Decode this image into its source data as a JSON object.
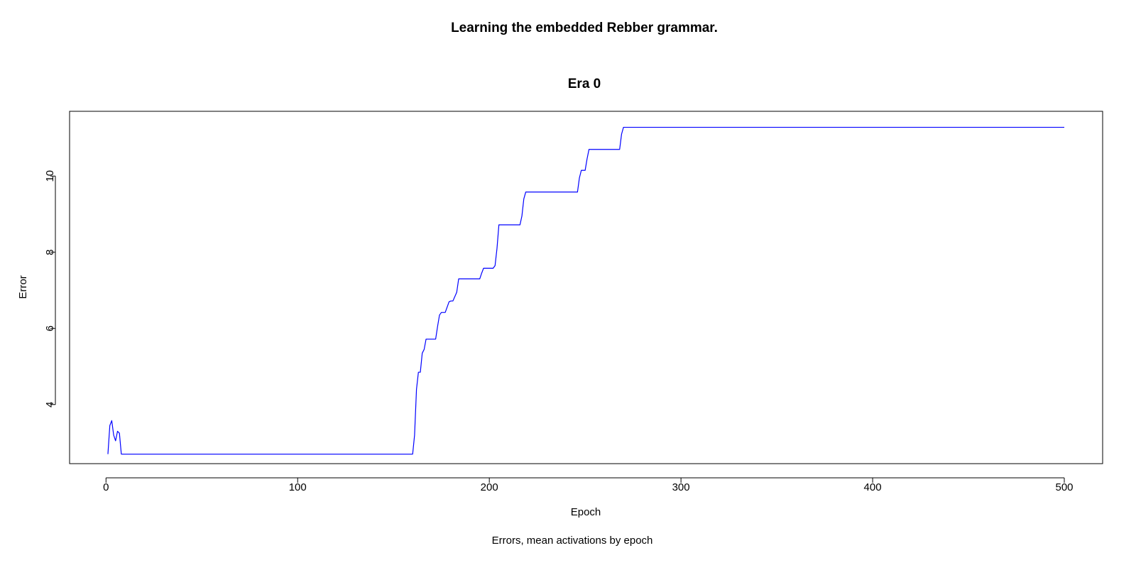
{
  "chart_data": {
    "type": "line",
    "title": "Learning the embedded Rebber grammar.",
    "subtitle": "Era 0",
    "xlabel": "Epoch",
    "ylabel": "Error",
    "caption": "Errors, mean activations by epoch",
    "xlim": [
      -19,
      520
    ],
    "ylim": [
      2.45,
      11.7
    ],
    "x_ticks": [
      0,
      100,
      200,
      300,
      400,
      500
    ],
    "x_tick_labels": [
      "0",
      "100",
      "200",
      "300",
      "400",
      "500"
    ],
    "y_ticks": [
      4,
      6,
      8,
      10
    ],
    "y_tick_labels": [
      "4",
      "6",
      "8",
      "10"
    ],
    "grid": false,
    "legend": "none",
    "series": [
      {
        "color": "#0000ff",
        "x": [
          1,
          2,
          3,
          4,
          5,
          6,
          7,
          8,
          160,
          161,
          162,
          163,
          164,
          165,
          166,
          167,
          168,
          169,
          172,
          173,
          174,
          175,
          176,
          177,
          179,
          180,
          181,
          183,
          184,
          195,
          196,
          197,
          202,
          203,
          204,
          205,
          216,
          217,
          218,
          219,
          246,
          247,
          248,
          250,
          251,
          252,
          253,
          268,
          269,
          270,
          271,
          500
        ],
        "y": [
          2.7,
          3.45,
          3.58,
          3.2,
          3.05,
          3.3,
          3.25,
          2.7,
          2.7,
          3.2,
          4.4,
          4.85,
          4.85,
          5.35,
          5.45,
          5.72,
          5.72,
          5.72,
          5.72,
          6.05,
          6.35,
          6.42,
          6.42,
          6.42,
          6.7,
          6.72,
          6.72,
          6.95,
          7.3,
          7.3,
          7.45,
          7.58,
          7.58,
          7.65,
          8.1,
          8.72,
          8.72,
          8.95,
          9.4,
          9.58,
          9.58,
          9.95,
          10.15,
          10.15,
          10.45,
          10.7,
          10.7,
          10.7,
          11.1,
          11.28,
          11.28,
          11.28
        ]
      }
    ]
  }
}
